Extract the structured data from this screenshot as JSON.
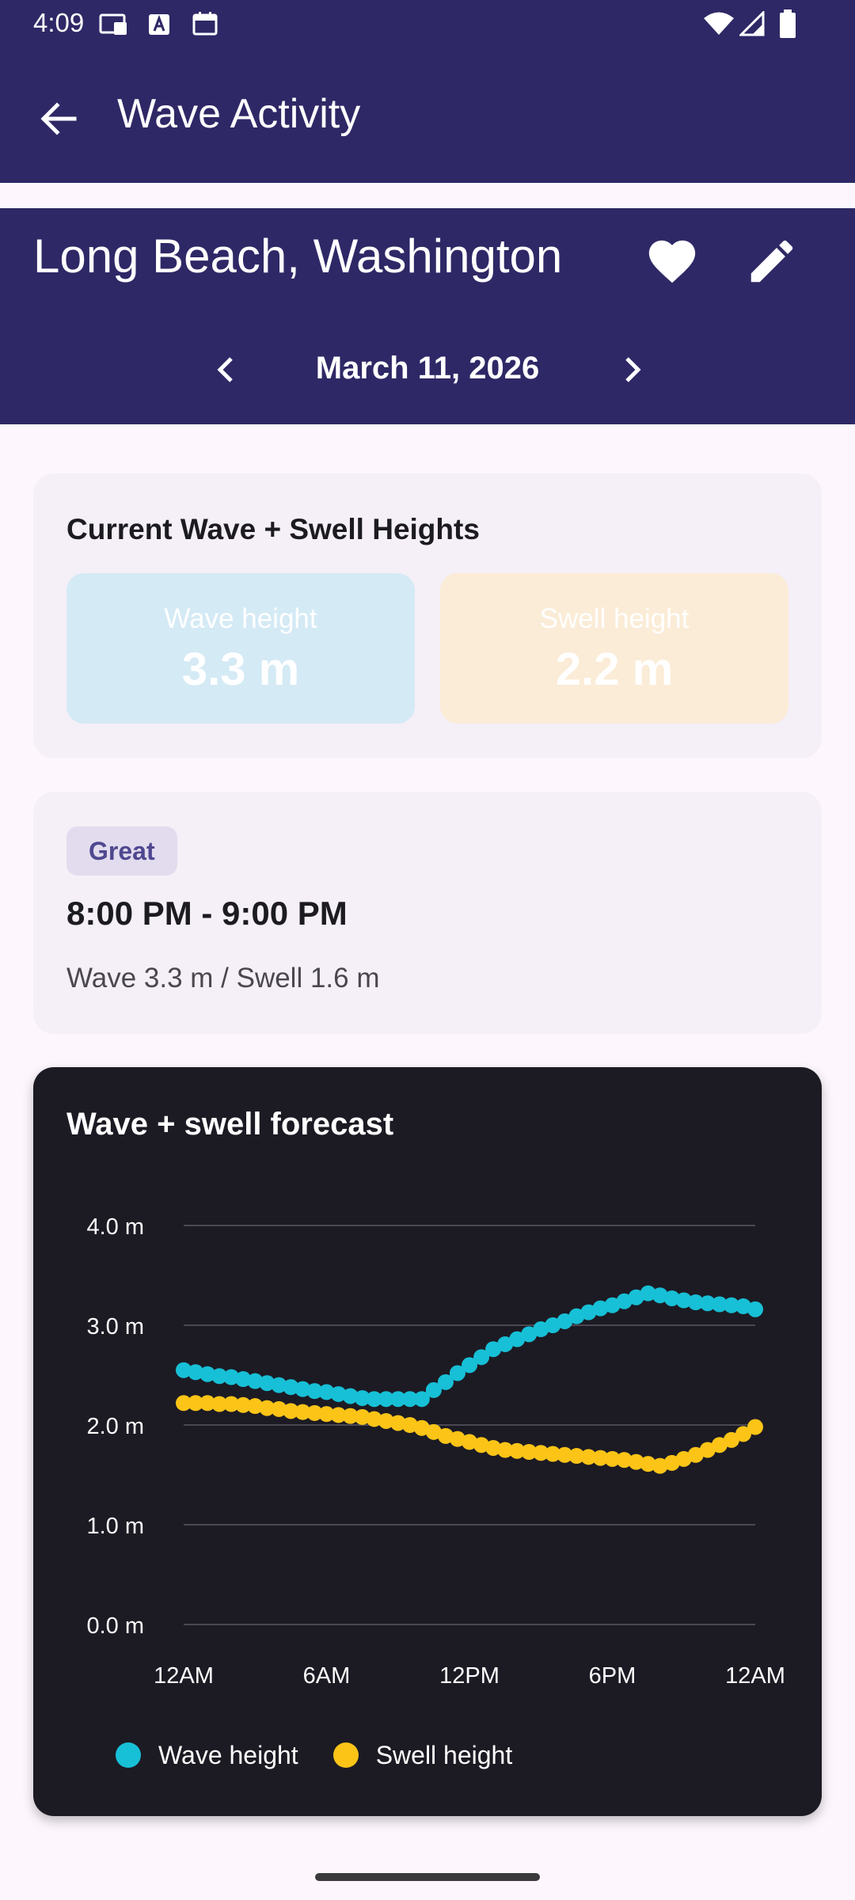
{
  "status_bar": {
    "time": "4:09",
    "left_icons": [
      "cast-icon",
      "font-a-icon",
      "calendar-icon"
    ],
    "right_icons": [
      "wifi-icon",
      "signal-icon",
      "battery-icon"
    ]
  },
  "app_bar": {
    "title": "Wave Activity",
    "back_icon": "arrow-back-icon"
  },
  "header": {
    "location": "Long Beach, Washington",
    "favorite_icon": "heart-icon",
    "edit_icon": "pencil-icon",
    "date": "March 11, 2026",
    "prev_icon": "chevron-left-icon",
    "next_icon": "chevron-right-icon"
  },
  "current_heights": {
    "title": "Current Wave + Swell Heights",
    "wave": {
      "label": "Wave height",
      "value": "3.3 m"
    },
    "swell": {
      "label": "Swell height",
      "value": "2.2 m"
    }
  },
  "best_window": {
    "badge": "Great",
    "time_range": "8:00 PM - 9:00 PM",
    "detail": "Wave 3.3 m / Swell 1.6 m"
  },
  "colors": {
    "primary": "#2e2866",
    "wave": "#17c0d6",
    "swell": "#fbc417",
    "chart_bg": "#1c1b24"
  },
  "chart_data": {
    "type": "line",
    "title": "Wave + swell forecast",
    "x": [
      "00:00",
      "00:30",
      "01:00",
      "01:30",
      "02:00",
      "02:30",
      "03:00",
      "03:30",
      "04:00",
      "04:30",
      "05:00",
      "05:30",
      "06:00",
      "06:30",
      "07:00",
      "07:30",
      "08:00",
      "08:30",
      "09:00",
      "09:30",
      "10:00",
      "10:30",
      "11:00",
      "11:30",
      "12:00",
      "12:30",
      "13:00",
      "13:30",
      "14:00",
      "14:30",
      "15:00",
      "15:30",
      "16:00",
      "16:30",
      "17:00",
      "17:30",
      "18:00",
      "18:30",
      "19:00",
      "19:30",
      "20:00",
      "20:30",
      "21:00",
      "21:30",
      "22:00",
      "22:30",
      "23:00",
      "23:30",
      "24:00"
    ],
    "series": [
      {
        "name": "Wave height",
        "color": "#17c0d6",
        "values": [
          2.55,
          2.53,
          2.51,
          2.49,
          2.48,
          2.46,
          2.44,
          2.42,
          2.4,
          2.38,
          2.36,
          2.34,
          2.33,
          2.31,
          2.29,
          2.27,
          2.26,
          2.26,
          2.26,
          2.26,
          2.26,
          2.35,
          2.43,
          2.52,
          2.6,
          2.68,
          2.76,
          2.81,
          2.86,
          2.91,
          2.96,
          3.0,
          3.04,
          3.09,
          3.13,
          3.17,
          3.2,
          3.24,
          3.28,
          3.32,
          3.3,
          3.27,
          3.25,
          3.23,
          3.22,
          3.21,
          3.2,
          3.19,
          3.16
        ]
      },
      {
        "name": "Swell height",
        "color": "#fbc417",
        "values": [
          2.22,
          2.22,
          2.22,
          2.21,
          2.21,
          2.2,
          2.19,
          2.17,
          2.16,
          2.14,
          2.13,
          2.12,
          2.11,
          2.1,
          2.09,
          2.08,
          2.06,
          2.04,
          2.02,
          2.0,
          1.97,
          1.93,
          1.89,
          1.86,
          1.83,
          1.8,
          1.77,
          1.75,
          1.74,
          1.73,
          1.72,
          1.71,
          1.7,
          1.69,
          1.68,
          1.67,
          1.66,
          1.65,
          1.63,
          1.61,
          1.59,
          1.62,
          1.66,
          1.7,
          1.75,
          1.8,
          1.85,
          1.91,
          1.98
        ]
      }
    ],
    "ylim": [
      0,
      4
    ],
    "yticks": [
      "0.0 m",
      "1.0 m",
      "2.0 m",
      "3.0 m",
      "4.0 m"
    ],
    "xticks": [
      "12AM",
      "6AM",
      "12PM",
      "6PM",
      "12AM"
    ],
    "grid": true,
    "legend_position": "bottom"
  }
}
